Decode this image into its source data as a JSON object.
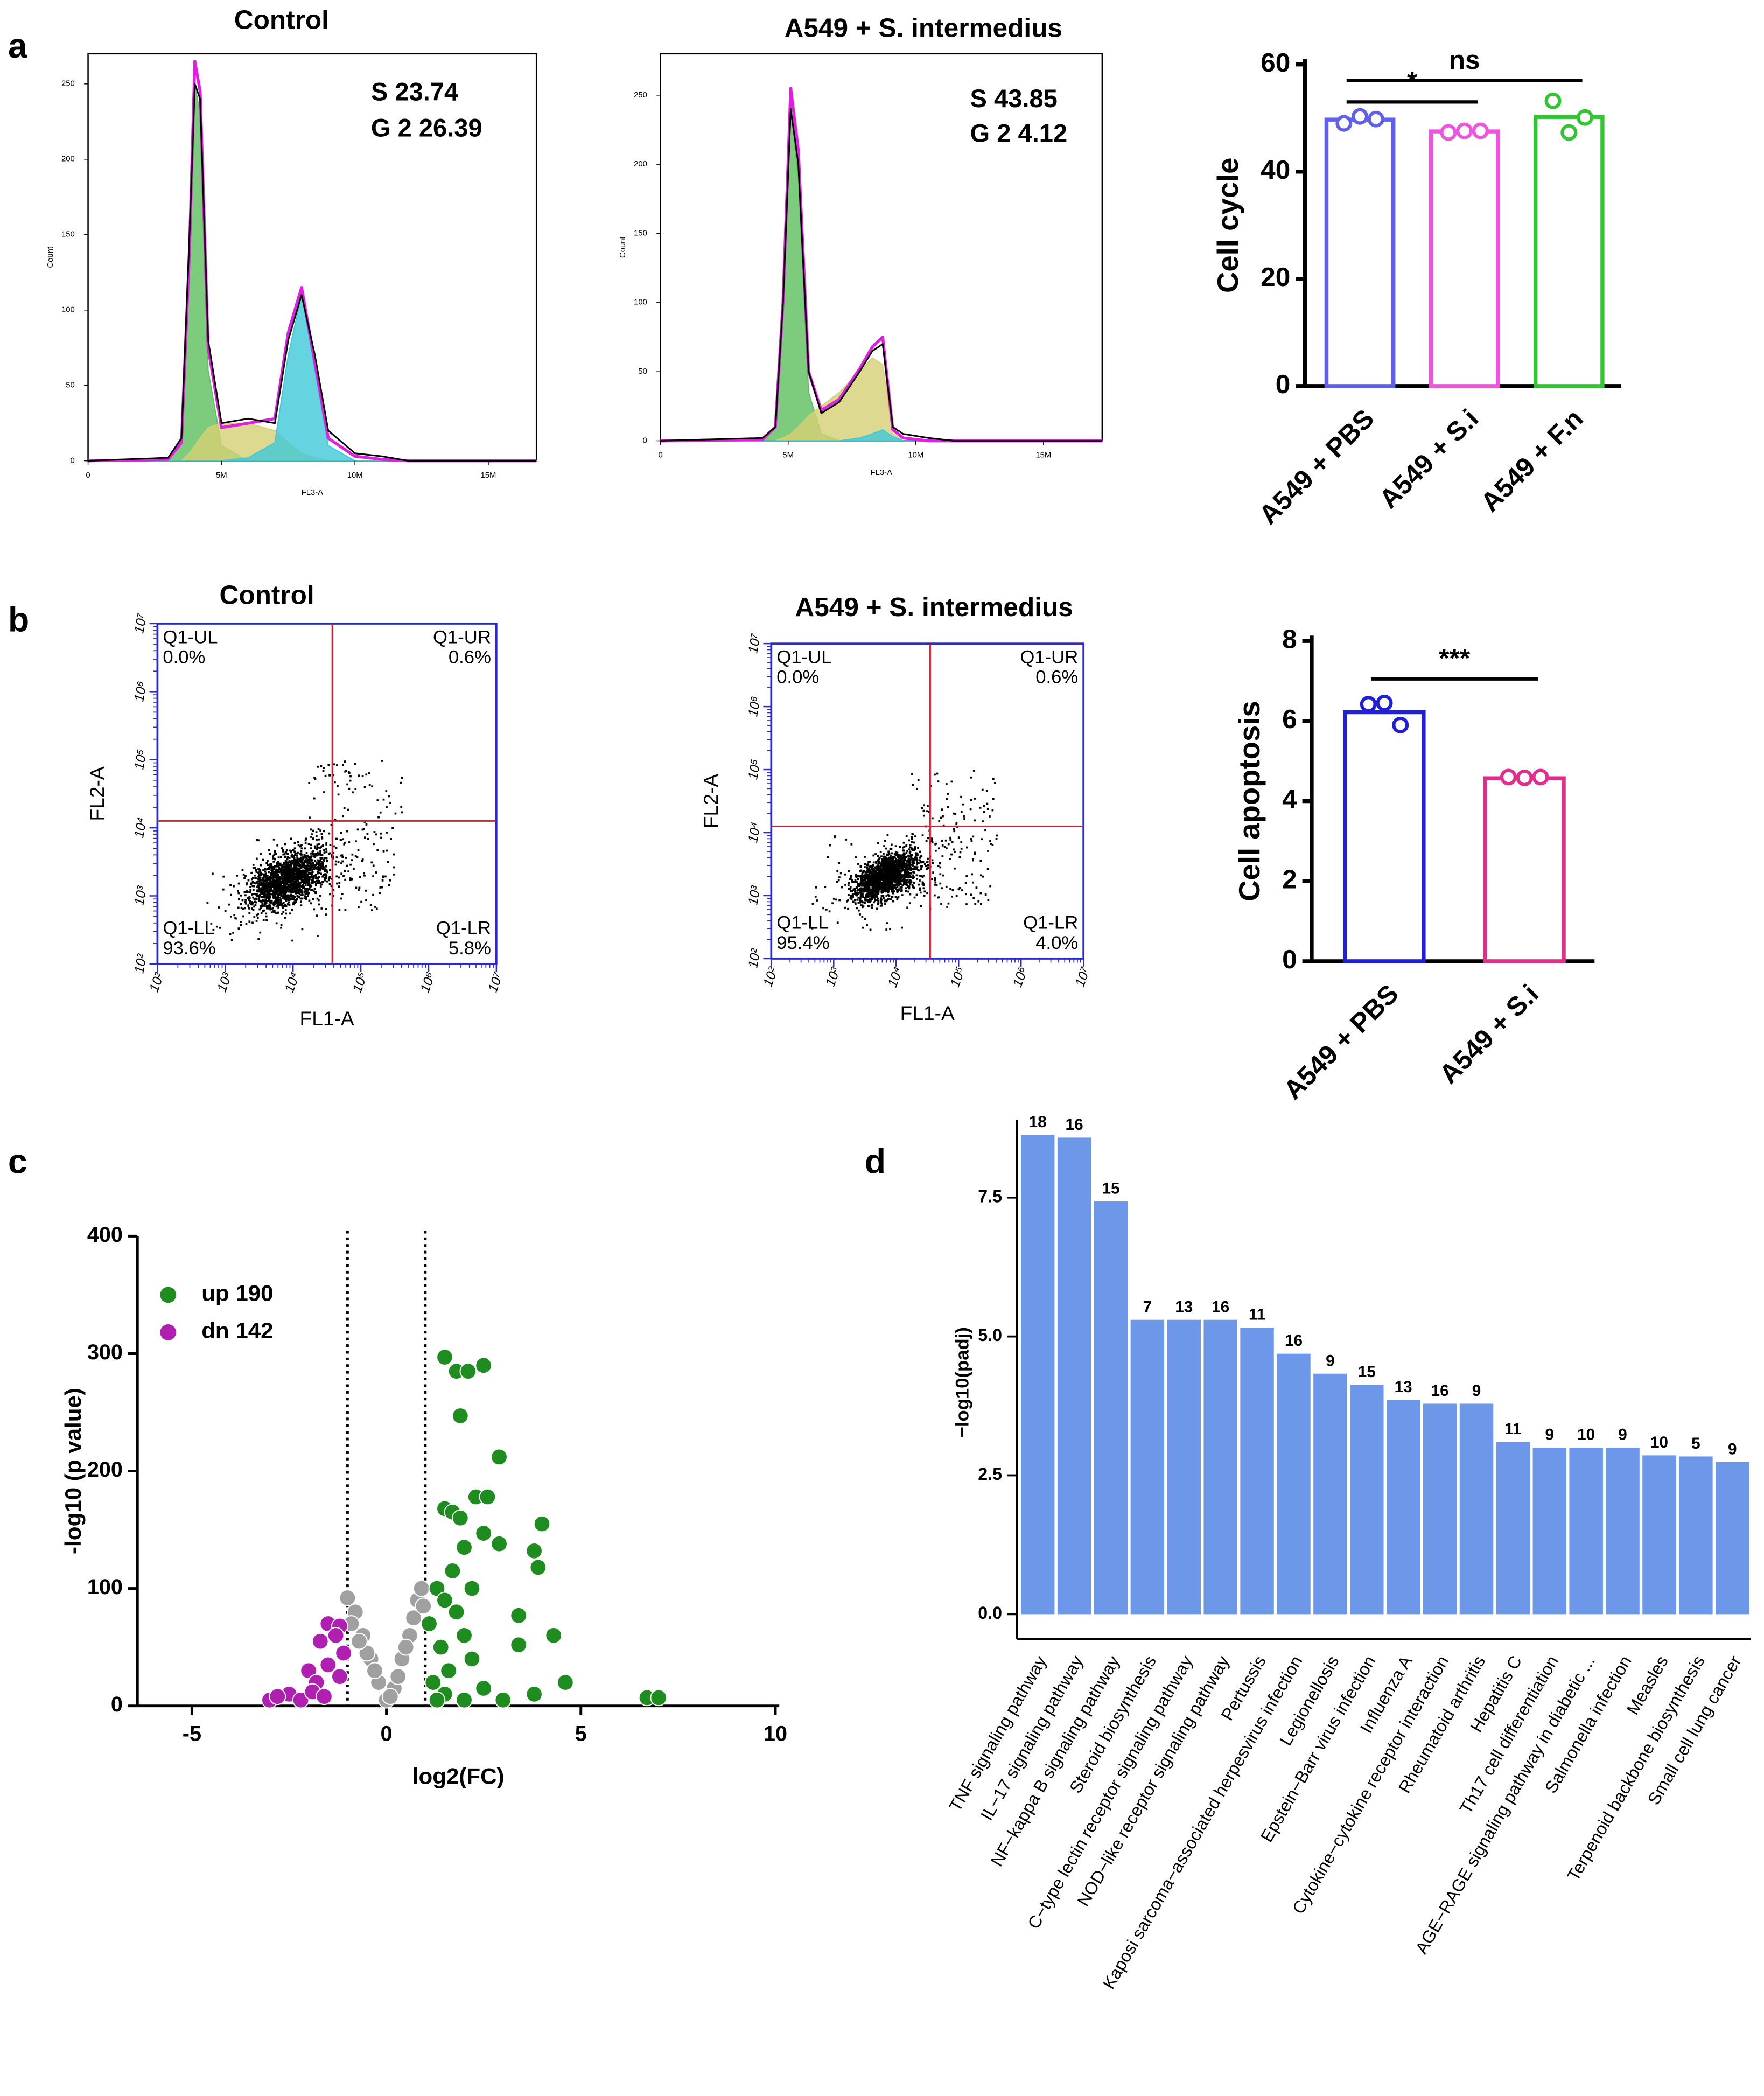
{
  "panel_labels": [
    "a",
    "b",
    "c",
    "d"
  ],
  "chart_data": [
    {
      "type": "area",
      "title": "Control",
      "annotations": [
        "S 23.74",
        "G 2 26.39"
      ],
      "xlabel": "FL3-A",
      "ylabel": "Count",
      "x": [
        0,
        3,
        3.5,
        3.8,
        4,
        4.2,
        4.5,
        5,
        6,
        7,
        7.5,
        8,
        8.5,
        9,
        10,
        11,
        12,
        16.8
      ],
      "xlim": [
        0,
        16.8
      ],
      "ylim": [
        0,
        270
      ],
      "xticks": [
        0,
        {
          "value": 5,
          "label": "5M"
        },
        {
          "value": 10,
          "label": "10M"
        },
        {
          "value": 15,
          "label": "15M"
        }
      ],
      "yticks": [
        0,
        50,
        100,
        150,
        200,
        250
      ],
      "curves": [
        {
          "kind": "area",
          "color": "#5cbf5c",
          "values": [
            0,
            1,
            12,
            140,
            250,
            230,
            60,
            10,
            0,
            0,
            0,
            0,
            0,
            0,
            0,
            0,
            0,
            0
          ]
        },
        {
          "kind": "area",
          "color": "#d6cf74",
          "values": [
            0,
            0,
            0,
            5,
            10,
            15,
            22,
            25,
            25,
            20,
            12,
            5,
            2,
            0,
            0,
            0,
            0,
            0
          ]
        },
        {
          "kind": "area",
          "color": "#3ec8d8",
          "values": [
            0,
            0,
            0,
            0,
            0,
            0,
            0,
            0,
            2,
            12,
            70,
            110,
            60,
            10,
            0,
            0,
            0,
            0
          ]
        },
        {
          "kind": "line",
          "color": "#e020e0",
          "values": [
            0,
            1,
            12,
            140,
            265,
            245,
            75,
            22,
            25,
            28,
            85,
            115,
            65,
            15,
            3,
            1,
            0,
            0
          ]
        },
        {
          "kind": "line",
          "color": "#000000",
          "values": [
            0,
            2,
            15,
            150,
            250,
            240,
            80,
            25,
            28,
            25,
            80,
            110,
            70,
            20,
            5,
            3,
            0,
            0
          ]
        }
      ]
    },
    {
      "type": "area",
      "title": "A549 + S. intermedius",
      "annotations": [
        "S 43.85",
        "G 2 4.12"
      ],
      "xlabel": "FL3-A",
      "ylabel": "Count",
      "x": [
        0,
        4,
        4.5,
        4.8,
        5.1,
        5.4,
        5.8,
        6.3,
        7,
        7.8,
        8.3,
        8.7,
        9.1,
        9.5,
        10.5,
        11.5,
        13,
        17.3
      ],
      "xlim": [
        0,
        17.3
      ],
      "ylim": [
        0,
        280
      ],
      "xticks": [
        0,
        {
          "value": 5,
          "label": "5M"
        },
        {
          "value": 10,
          "label": "10M"
        },
        {
          "value": 15,
          "label": "15M"
        }
      ],
      "yticks": [
        0,
        50,
        100,
        150,
        200,
        250
      ],
      "curves": [
        {
          "kind": "area",
          "color": "#5cbf5c",
          "values": [
            0,
            1,
            10,
            95,
            240,
            190,
            35,
            5,
            0,
            0,
            0,
            0,
            0,
            0,
            0,
            0,
            0,
            0
          ]
        },
        {
          "kind": "area",
          "color": "#d6cf74",
          "values": [
            0,
            0,
            0,
            2,
            5,
            10,
            18,
            25,
            35,
            50,
            60,
            55,
            5,
            0,
            0,
            0,
            0,
            0
          ]
        },
        {
          "kind": "area",
          "color": "#3ec8d8",
          "values": [
            0,
            0,
            0,
            0,
            0,
            0,
            0,
            0,
            0,
            2,
            5,
            8,
            3,
            0,
            0,
            0,
            0,
            0
          ]
        },
        {
          "kind": "line",
          "color": "#e020e0",
          "values": [
            0,
            1,
            10,
            100,
            255,
            210,
            50,
            22,
            30,
            52,
            68,
            75,
            8,
            2,
            0,
            0,
            0,
            0
          ]
        },
        {
          "kind": "line",
          "color": "#000000",
          "values": [
            0,
            2,
            10,
            100,
            240,
            200,
            50,
            20,
            28,
            50,
            65,
            70,
            10,
            5,
            2,
            0,
            0,
            0
          ]
        }
      ]
    },
    {
      "type": "bar",
      "style": "outline",
      "ylabel": "Cell cycle",
      "categories": [
        "A549 + PBS",
        "A549 + S.i",
        "A549 + F.n"
      ],
      "values": [
        49.7,
        47.5,
        50.2
      ],
      "colors": [
        "#6060e8",
        "#ee55dd",
        "#33c433"
      ],
      "points": [
        [
          49.0,
          50.3,
          49.8
        ],
        [
          47.3,
          47.6,
          47.6
        ],
        [
          53.2,
          47.3,
          50.1
        ]
      ],
      "ylim": [
        0,
        60
      ],
      "yticks": [
        0,
        20,
        40,
        60
      ],
      "annotations": [
        "ns",
        "*"
      ]
    },
    {
      "type": "scatter",
      "log": true,
      "title": "Control",
      "xlabel": "FL1-A",
      "ylabel": "FL2-A",
      "xlim": [
        100,
        10000000
      ],
      "ylim": [
        100,
        10000000
      ],
      "xticks": [
        {
          "value": 100,
          "label": "10²"
        },
        {
          "value": 1000,
          "label": "10³"
        },
        {
          "value": 10000,
          "label": "10⁴"
        },
        {
          "value": 100000,
          "label": "10⁵"
        },
        {
          "value": 1000000,
          "label": "10⁶"
        },
        {
          "value": 10000000,
          "label": "10⁷"
        }
      ],
      "yticks": [
        {
          "value": 100,
          "label": "10²"
        },
        {
          "value": 1000,
          "label": "10³"
        },
        {
          "value": 10000,
          "label": "10⁴"
        },
        {
          "value": 100000,
          "label": "10⁵"
        },
        {
          "value": 1000000,
          "label": "10⁶"
        },
        {
          "value": 10000000,
          "label": "10⁷"
        }
      ],
      "gate": [
        38000,
        12600
      ],
      "quadrants": [
        "Q1-UL",
        "Q1-UR",
        "Q1-LL",
        "Q1-LR"
      ],
      "values": [
        0,
        0.6,
        93.6,
        5.8
      ],
      "value_labels": [
        "0.0%",
        "0.6%",
        "93.6%",
        "5.8%"
      ]
    },
    {
      "type": "scatter",
      "log": true,
      "title": "A549 + S. intermedius",
      "xlabel": "FL1-A",
      "ylabel": "FL2-A",
      "xlim": [
        100,
        10000000
      ],
      "ylim": [
        100,
        10000000
      ],
      "xticks": [
        {
          "value": 100,
          "label": "10²"
        },
        {
          "value": 1000,
          "label": "10³"
        },
        {
          "value": 10000,
          "label": "10⁴"
        },
        {
          "value": 100000,
          "label": "10⁵"
        },
        {
          "value": 1000000,
          "label": "10⁶"
        },
        {
          "value": 10000000,
          "label": "10⁷"
        }
      ],
      "yticks": [
        {
          "value": 100,
          "label": "10²"
        },
        {
          "value": 1000,
          "label": "10³"
        },
        {
          "value": 10000,
          "label": "10⁴"
        },
        {
          "value": 100000,
          "label": "10⁵"
        },
        {
          "value": 1000000,
          "label": "10⁶"
        },
        {
          "value": 10000000,
          "label": "10⁷"
        }
      ],
      "gate": [
        35000,
        12600
      ],
      "quadrants": [
        "Q1-UL",
        "Q1-UR",
        "Q1-LL",
        "Q1-LR"
      ],
      "values": [
        0,
        0.6,
        95.4,
        4.0
      ],
      "value_labels": [
        "0.0%",
        "0.6%",
        "95.4%",
        "4.0%"
      ]
    },
    {
      "type": "bar",
      "style": "outline",
      "ylabel": "Cell apoptosis",
      "categories": [
        "A549 + PBS",
        "A549 + S.i"
      ],
      "values": [
        6.22,
        4.57
      ],
      "colors": [
        "#1f1fd6",
        "#e02f8a"
      ],
      "points": [
        [
          6.42,
          6.45,
          5.9
        ],
        [
          4.6,
          4.58,
          4.6
        ]
      ],
      "ylim": [
        0,
        8
      ],
      "yticks": [
        0,
        2,
        4,
        6,
        8
      ],
      "annotations": [
        "***"
      ]
    },
    {
      "type": "scatter",
      "xlabel": "log2(FC)",
      "ylabel": "-log10 (p value)",
      "xlim": [
        -6.4,
        10.1
      ],
      "ylim": [
        0,
        400
      ],
      "xticks": [
        -5,
        0,
        5,
        10
      ],
      "yticks": [
        0,
        100,
        200,
        300,
        400
      ],
      "thresholds": [
        -1,
        1
      ],
      "series": [
        {
          "color": "#a0a0a0",
          "x": [
            -1.0,
            -0.8,
            -0.6,
            -0.4,
            -0.2,
            0,
            0.2,
            0.4,
            0.6,
            0.8,
            0.9,
            -0.9,
            0.3,
            -0.3,
            0.1,
            0.5,
            -0.5,
            0.7,
            -0.7,
            0.95
          ],
          "values": [
            92,
            80,
            60,
            40,
            20,
            5,
            15,
            40,
            60,
            90,
            100,
            70,
            25,
            30,
            8,
            50,
            45,
            75,
            55,
            85
          ]
        },
        {
          "name": "up 190",
          "color": "#1e8c1e",
          "x": [
            1.5,
            1.8,
            2.1,
            2.5,
            1.9,
            2.9,
            1.5,
            1.7,
            1.9,
            2.3,
            2.6,
            2.0,
            2.5,
            2.9,
            3.8,
            3.9,
            4.0,
            3.4,
            3.4,
            4.3,
            3.8,
            4.6,
            6.7,
            7.0,
            1.3,
            1.5,
            1.8,
            2.0,
            1.4,
            1.6,
            2.2,
            1.2,
            1.5,
            2.0,
            2.5,
            3.0,
            1.1,
            1.7,
            2.2,
            1.3
          ],
          "values": [
            297,
            285,
            285,
            290,
            247,
            212,
            168,
            165,
            160,
            178,
            178,
            135,
            147,
            138,
            132,
            118,
            155,
            77,
            52,
            60,
            10,
            20,
            7,
            7,
            100,
            90,
            80,
            60,
            50,
            30,
            40,
            20,
            10,
            5,
            15,
            5,
            70,
            115,
            100,
            5
          ]
        },
        {
          "name": "dn 142",
          "color": "#b020b0",
          "x": [
            -1.5,
            -1.2,
            -1.7,
            -1.3,
            -2.0,
            -1.8,
            -2.5,
            -3.0,
            -2.2,
            -1.5,
            -1.2,
            -2.8,
            -1.1,
            -1.9,
            -1.6
          ],
          "values": [
            70,
            68,
            55,
            60,
            30,
            20,
            10,
            5,
            5,
            35,
            25,
            8,
            45,
            12,
            8
          ]
        }
      ]
    },
    {
      "type": "bar",
      "style": "filled",
      "ylabel": "−log10(padj)",
      "color": "#6d98ea",
      "categories": [
        "TNF signaling pathway",
        "IL−17 signaling pathway",
        "NF−kappa B signaling pathway",
        "Steroid biosynthesis",
        "C−type lectin receptor signaling pathway",
        "NOD−like receptor signaling pathway",
        "Pertussis",
        "Kaposi sarcoma−associated herpesvirus infection",
        "Legionellosis",
        "Epstein−Barr virus infection",
        "Influenza A",
        "Cytokine−cytokine receptor interaction",
        "Rheumatoid arthritis",
        "Hepatitis C",
        "Th17 cell differentiation",
        "AGE−RAGE signaling pathway in diabetic ...",
        "Salmonella infection",
        "Measles",
        "Terpenoid backbone biosynthesis",
        "Small cell lung cancer"
      ],
      "values": [
        8.63,
        8.58,
        7.43,
        5.3,
        5.3,
        5.3,
        5.16,
        4.69,
        4.33,
        4.13,
        3.86,
        3.79,
        3.79,
        3.1,
        3.0,
        3.0,
        3.0,
        2.86,
        2.84,
        2.74
      ],
      "counts": [
        18,
        16,
        15,
        7,
        13,
        16,
        11,
        16,
        9,
        15,
        13,
        16,
        9,
        11,
        9,
        10,
        9,
        10,
        5,
        9
      ],
      "ylim": [
        -0.45,
        8.8
      ],
      "yticks": [
        {
          "value": 0,
          "label": "0.0"
        },
        2.5,
        {
          "value": 5,
          "label": "5.0"
        },
        7.5
      ]
    }
  ]
}
